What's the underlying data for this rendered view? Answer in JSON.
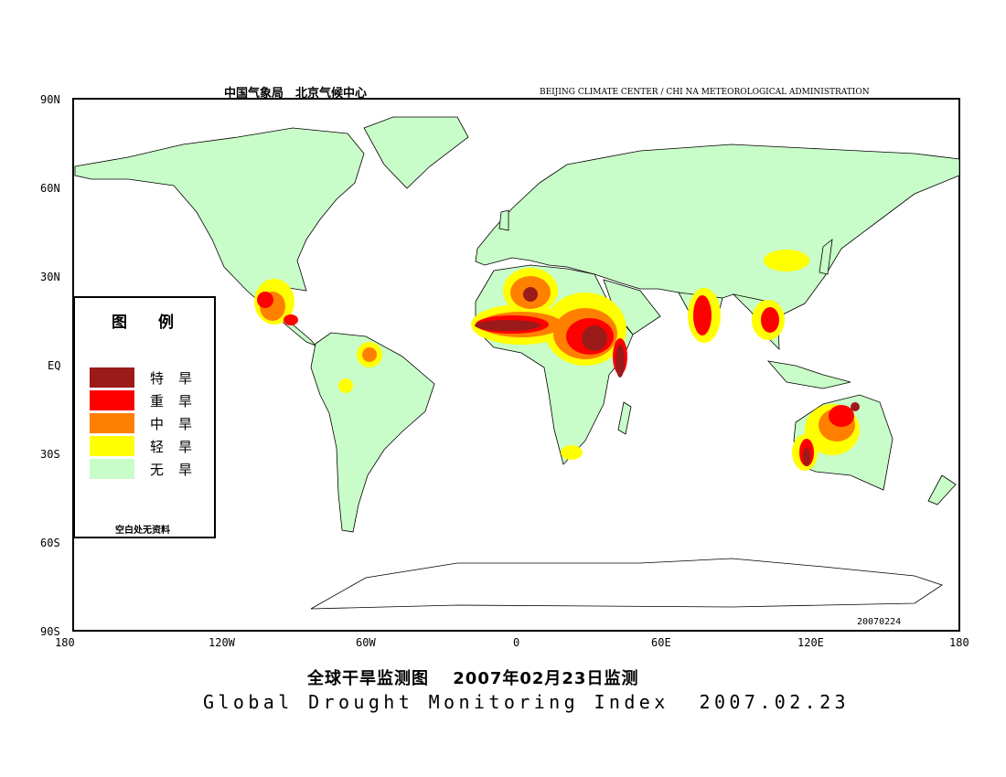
{
  "header": {
    "left": "中国气象局　北京气候中心",
    "right": "BEIJING CLIMATE CENTER / CHI NA METEOROLOGICAL ADMINISTRATION"
  },
  "map": {
    "lat_labels": [
      "90N",
      "60N",
      "30N",
      "EQ",
      "30S",
      "60S",
      "90S"
    ],
    "lon_labels": [
      "180",
      "120W",
      "60W",
      "0",
      "60E",
      "120E",
      "180"
    ],
    "stamp": "20070224"
  },
  "legend": {
    "title": "图　　例",
    "items": [
      {
        "label": "特旱",
        "color": "#9b1a1a"
      },
      {
        "label": "重旱",
        "color": "#ff0000"
      },
      {
        "label": "中旱",
        "color": "#ff8000"
      },
      {
        "label": "轻旱",
        "color": "#ffff00"
      },
      {
        "label": "无旱",
        "color": "#c8fcc8"
      }
    ],
    "note": "空白处无资料"
  },
  "footer": {
    "title_cn": "全球干旱监测图　 2007年02月23日监测",
    "title_en": "Global Drought Monitoring Index  2007.02.23"
  }
}
